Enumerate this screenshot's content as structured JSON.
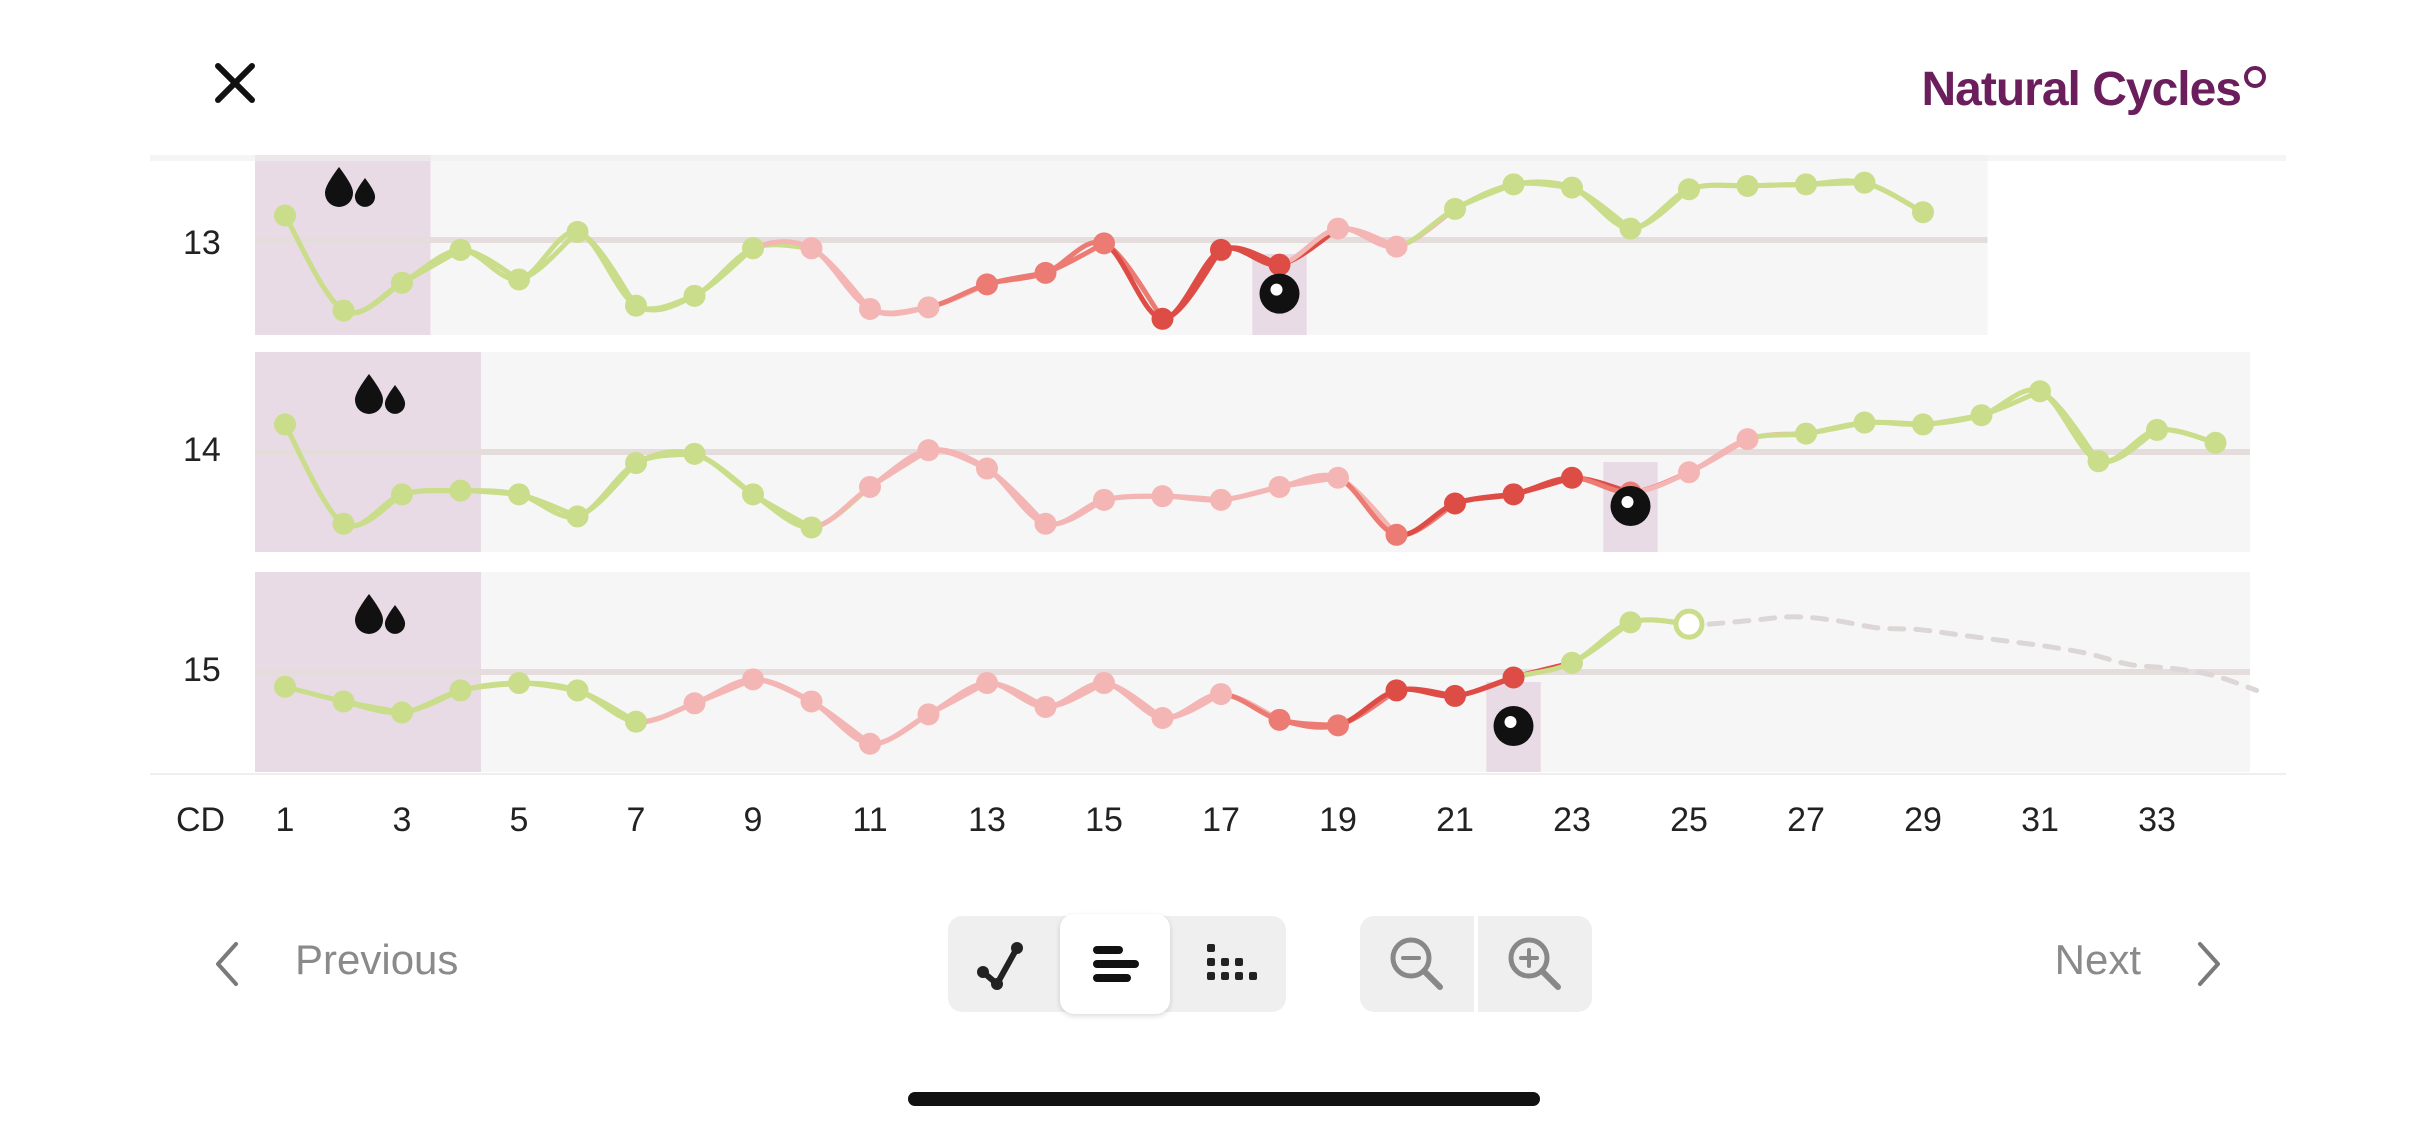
{
  "header": {
    "close_icon": "close-icon",
    "logo_text": "Natural Cycles"
  },
  "colors": {
    "green": "#c9dd8a",
    "pink_light": "#f4b6b5",
    "salmon": "#ec7b74",
    "red": "#dd4d46",
    "row_bg": "#f7f6f6",
    "period_bg": "#e8dbe5",
    "ring_line": "#e5dcdc",
    "predicted": "#ddd6d6"
  },
  "chart_data": {
    "type": "line",
    "xlabel": "CD",
    "x_ticks": [
      1,
      3,
      5,
      7,
      9,
      11,
      13,
      15,
      17,
      19,
      21,
      23,
      25,
      27,
      29,
      31,
      33
    ],
    "grid": false,
    "series": [
      {
        "name": "13",
        "period_days": [
          1,
          3
        ],
        "ovulation_day": 18,
        "values": [
          0.68,
          0.1,
          0.27,
          0.47,
          0.29,
          0.58,
          0.13,
          0.19,
          0.48,
          0.48,
          0.11,
          0.12,
          0.26,
          0.33,
          0.51,
          0.05,
          0.47,
          0.38,
          0.6,
          0.49,
          0.72,
          0.87,
          0.85,
          0.6,
          0.84,
          0.86,
          0.87,
          0.88,
          0.7
        ],
        "phases": [
          "green",
          "green",
          "green",
          "green",
          "green",
          "green",
          "green",
          "green",
          "green",
          "lightpink",
          "lightpink",
          "lightpink",
          "salmon",
          "salmon",
          "salmon",
          "red",
          "red",
          "red",
          "lightpink",
          "lightpink",
          "green",
          "green",
          "green",
          "green",
          "green",
          "green",
          "green",
          "green",
          "green"
        ]
      },
      {
        "name": "14",
        "period_days": [
          1,
          4
        ],
        "ovulation_day": 24,
        "values": [
          0.65,
          0.11,
          0.27,
          0.29,
          0.27,
          0.15,
          0.44,
          0.49,
          0.27,
          0.09,
          0.31,
          0.51,
          0.41,
          0.11,
          0.24,
          0.26,
          0.24,
          0.31,
          0.36,
          0.05,
          0.22,
          0.27,
          0.36,
          0.28,
          0.39,
          0.57,
          0.6,
          0.66,
          0.65,
          0.7,
          0.83,
          0.45,
          0.62,
          0.55
        ],
        "phases": [
          "green",
          "green",
          "green",
          "green",
          "green",
          "green",
          "green",
          "green",
          "green",
          "green",
          "lightpink",
          "lightpink",
          "lightpink",
          "lightpink",
          "lightpink",
          "lightpink",
          "lightpink",
          "lightpink",
          "lightpink",
          "salmon",
          "red",
          "red",
          "red",
          "salmon",
          "lightpink",
          "lightpink",
          "green",
          "green",
          "green",
          "green",
          "green",
          "green",
          "green",
          "green"
        ]
      },
      {
        "name": "15",
        "period_days": [
          1,
          4
        ],
        "ovulation_day": 22,
        "predicted_day": 25,
        "values": [
          0.42,
          0.34,
          0.28,
          0.4,
          0.44,
          0.4,
          0.23,
          0.33,
          0.46,
          0.34,
          0.11,
          0.27,
          0.44,
          0.31,
          0.44,
          0.25,
          0.38,
          0.24,
          0.21,
          0.4,
          0.37,
          0.47,
          0.55,
          0.77,
          0.76
        ],
        "phases": [
          "green",
          "green",
          "green",
          "green",
          "green",
          "green",
          "green",
          "lightpink",
          "lightpink",
          "lightpink",
          "lightpink",
          "lightpink",
          "lightpink",
          "lightpink",
          "lightpink",
          "lightpink",
          "lightpink",
          "salmon",
          "salmon",
          "red",
          "red",
          "red",
          "green",
          "green",
          "hollow"
        ],
        "predicted_values": [
          0.76,
          0.78,
          0.8,
          0.78,
          0.74,
          0.73,
          0.7,
          0.67,
          0.64,
          0.6,
          0.54,
          0.52,
          0.48,
          0.4
        ]
      }
    ]
  },
  "controls": {
    "previous_label": "Previous",
    "next_label": "Next",
    "view_modes": [
      "graph-icon",
      "cycles-icon",
      "calendar-dots-icon"
    ],
    "active_view": "cycles-icon",
    "zoom": [
      "zoom-out-icon",
      "zoom-in-icon"
    ]
  }
}
